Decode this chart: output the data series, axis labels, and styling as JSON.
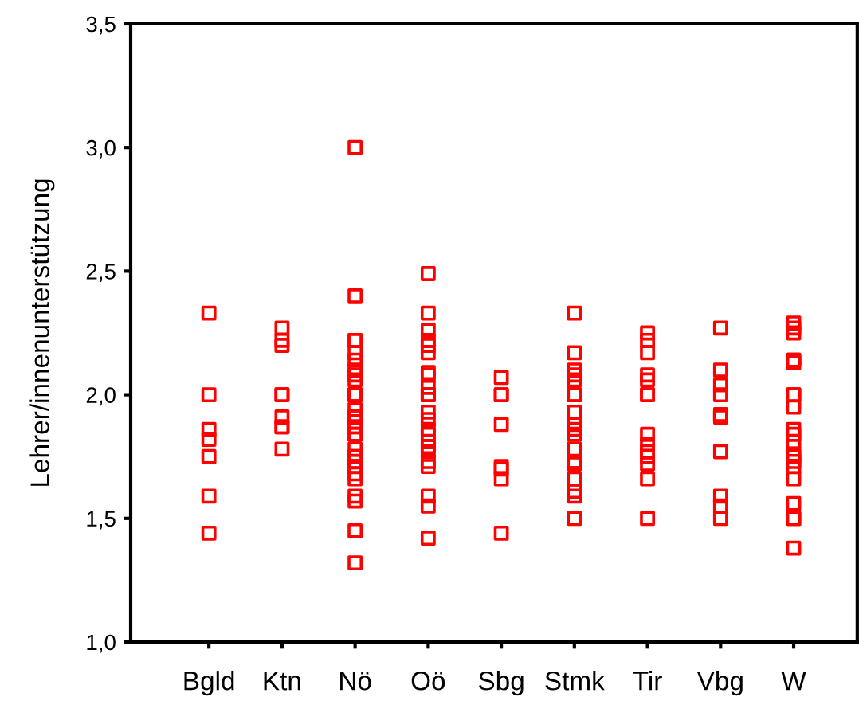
{
  "chart_data": {
    "type": "scatter",
    "ylabel": "Lehrer/innenunterstützung",
    "categories": [
      "Bgld",
      "Ktn",
      "Nö",
      "Oö",
      "Sbg",
      "Stmk",
      "Tir",
      "Vbg",
      "W"
    ],
    "series": [
      {
        "color": "#ff0000",
        "x": [
          "Bgld",
          "Bgld",
          "Bgld",
          "Bgld",
          "Bgld",
          "Bgld",
          "Bgld",
          "Ktn",
          "Ktn",
          "Ktn",
          "Ktn",
          "Ktn",
          "Ktn",
          "Ktn",
          "Ktn",
          "Ktn",
          "Nö",
          "Nö",
          "Nö",
          "Nö",
          "Nö",
          "Nö",
          "Nö",
          "Nö",
          "Nö",
          "Nö",
          "Nö",
          "Nö",
          "Nö",
          "Nö",
          "Nö",
          "Nö",
          "Nö",
          "Nö",
          "Nö",
          "Nö",
          "Nö",
          "Nö",
          "Nö",
          "Nö",
          "Nö",
          "Nö",
          "Nö",
          "Nö",
          "Nö",
          "Nö",
          "Nö",
          "Nö",
          "Oö",
          "Oö",
          "Oö",
          "Oö",
          "Oö",
          "Oö",
          "Oö",
          "Oö",
          "Oö",
          "Oö",
          "Oö",
          "Oö",
          "Oö",
          "Oö",
          "Oö",
          "Oö",
          "Oö",
          "Oö",
          "Oö",
          "Oö",
          "Oö",
          "Oö",
          "Oö",
          "Oö",
          "Sbg",
          "Sbg",
          "Sbg",
          "Sbg",
          "Sbg",
          "Sbg",
          "Sbg",
          "Sbg",
          "Stmk",
          "Stmk",
          "Stmk",
          "Stmk",
          "Stmk",
          "Stmk",
          "Stmk",
          "Stmk",
          "Stmk",
          "Stmk",
          "Stmk",
          "Stmk",
          "Stmk",
          "Stmk",
          "Stmk",
          "Stmk",
          "Stmk",
          "Stmk",
          "Stmk",
          "Stmk",
          "Tir",
          "Tir",
          "Tir",
          "Tir",
          "Tir",
          "Tir",
          "Tir",
          "Tir",
          "Tir",
          "Tir",
          "Tir",
          "Tir",
          "Tir",
          "Tir",
          "Vbg",
          "Vbg",
          "Vbg",
          "Vbg",
          "Vbg",
          "Vbg",
          "Vbg",
          "Vbg",
          "Vbg",
          "Vbg",
          "W",
          "W",
          "W",
          "W",
          "W",
          "W",
          "W",
          "W",
          "W",
          "W",
          "W",
          "W",
          "W",
          "W",
          "W",
          "W",
          "W",
          "W",
          "W",
          "W",
          "W"
        ],
        "values": [
          2.33,
          2.0,
          1.86,
          1.82,
          1.75,
          1.59,
          1.44,
          2.27,
          2.22,
          2.2,
          2.0,
          2.0,
          1.91,
          1.87,
          1.87,
          1.78,
          3.0,
          2.4,
          2.22,
          2.22,
          2.17,
          2.14,
          2.1,
          2.08,
          2.06,
          2.0,
          2.0,
          2.0,
          2.0,
          1.94,
          1.91,
          1.91,
          1.87,
          1.87,
          1.84,
          1.84,
          1.78,
          1.75,
          1.75,
          1.73,
          1.71,
          1.71,
          1.68,
          1.66,
          1.59,
          1.57,
          1.45,
          1.32,
          2.49,
          2.33,
          2.26,
          2.22,
          2.2,
          2.17,
          2.09,
          2.08,
          2.03,
          2.0,
          2.0,
          2.0,
          1.93,
          1.9,
          1.86,
          1.84,
          1.81,
          1.79,
          1.77,
          1.73,
          1.71,
          1.59,
          1.55,
          1.42,
          2.07,
          2.0,
          2.0,
          1.88,
          1.71,
          1.7,
          1.66,
          1.44,
          2.33,
          2.17,
          2.1,
          2.08,
          2.06,
          2.0,
          2.0,
          2.0,
          1.93,
          1.88,
          1.86,
          1.84,
          1.78,
          1.73,
          1.73,
          1.72,
          1.66,
          1.61,
          1.59,
          1.5,
          2.25,
          2.22,
          2.17,
          2.08,
          2.06,
          2.0,
          2.0,
          1.84,
          1.8,
          1.77,
          1.75,
          1.72,
          1.66,
          1.5,
          2.27,
          2.1,
          2.04,
          2.0,
          1.92,
          1.91,
          1.77,
          1.59,
          1.55,
          1.5,
          2.29,
          2.27,
          2.25,
          2.14,
          2.14,
          2.13,
          2.0,
          2.0,
          1.95,
          1.86,
          1.84,
          1.81,
          1.76,
          1.75,
          1.73,
          1.71,
          1.66,
          1.56,
          1.5,
          1.5,
          1.38
        ]
      }
    ],
    "ylim": [
      1.0,
      3.5
    ],
    "yticks": [
      {
        "value": 1.0,
        "label": "1,0"
      },
      {
        "value": 1.5,
        "label": "1,5"
      },
      {
        "value": 2.0,
        "label": "2,0"
      },
      {
        "value": 2.5,
        "label": "2,5"
      },
      {
        "value": 3.0,
        "label": "3,0"
      },
      {
        "value": 3.5,
        "label": "3,5"
      }
    ],
    "marker": "square",
    "grid": false
  }
}
